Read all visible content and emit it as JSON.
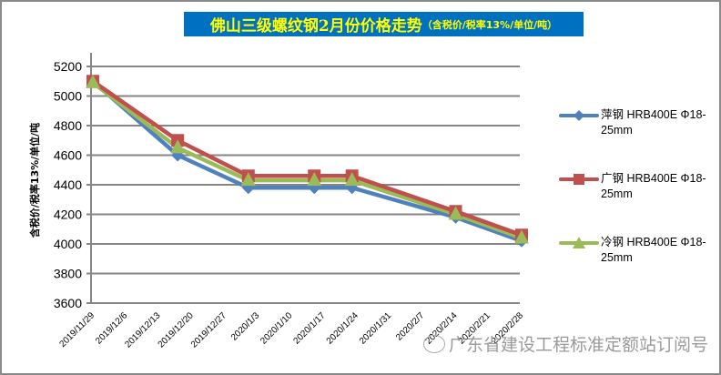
{
  "chart_data": {
    "type": "line",
    "title": "佛山三级螺纹钢2月份价格走势",
    "subtitle": "（含税价/税率13%/单位/吨）",
    "xlabel": "",
    "ylabel": "含税价/税率13%/单位/吨",
    "ylim": [
      3600,
      5200
    ],
    "yticks": [
      3600,
      3800,
      4000,
      4200,
      4400,
      4600,
      4800,
      5000,
      5200
    ],
    "x_tick_labels": [
      "2019/11/29",
      "2019/12/6",
      "2019/12/13",
      "2019/12/20",
      "2019/12/27",
      "2020/1/3",
      "2020/1/10",
      "2020/1/17",
      "2020/1/24",
      "2020/1/31",
      "2020/2/7",
      "2020/2/14",
      "2020/2/21",
      "2020/2/28"
    ],
    "grid": "horizontal",
    "legend_position": "right",
    "x": [
      "2019/11/29",
      "2019/12/17",
      "2020/1/1",
      "2020/1/15",
      "2020/1/23",
      "2020/2/14",
      "2020/2/28"
    ],
    "series": [
      {
        "name": "萍钢 HRB400E Φ18-25mm",
        "color": "#4f81bd",
        "marker": "diamond",
        "values": [
          5100,
          4600,
          4380,
          4380,
          4380,
          4180,
          4020
        ]
      },
      {
        "name": "广钢 HRB400E Φ18-25mm",
        "color": "#c0504d",
        "marker": "square",
        "values": [
          5100,
          4700,
          4460,
          4460,
          4460,
          4220,
          4060
        ]
      },
      {
        "name": "冷钢 HRB400E Φ18-25mm",
        "color": "#9bbb59",
        "marker": "triangle",
        "values": [
          5090,
          4650,
          4430,
          4430,
          4430,
          4200,
          4040
        ]
      }
    ]
  },
  "title": {
    "main": "佛山三级螺纹钢2月份价格走势",
    "sub": "（含税价/税率13%/单位/吨）",
    "bg_color": "#0070c0",
    "text_color": "#ffff00"
  },
  "legend": [
    {
      "line1": "萍钢 HRB400E Φ18-",
      "line2": "25mm"
    },
    {
      "line1": "广钢 HRB400E Φ18-",
      "line2": "25mm"
    },
    {
      "line1": "冷钢 HRB400E Φ18-",
      "line2": "25mm"
    }
  ],
  "watermark": "广东省建设工程标准定额站订阅号"
}
